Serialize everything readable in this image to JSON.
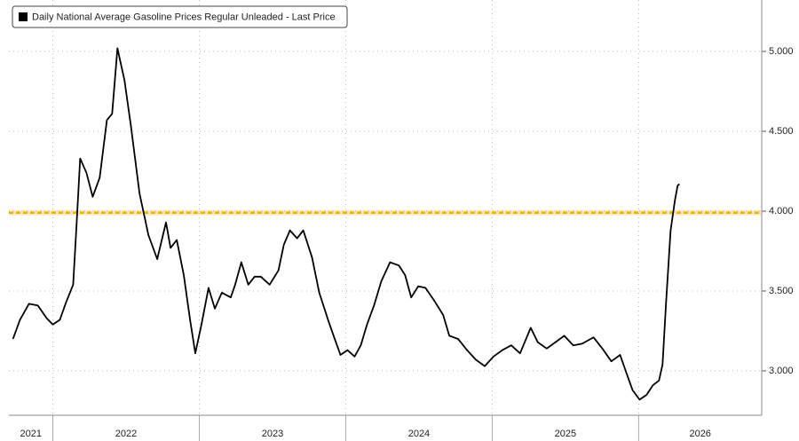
{
  "chart_data": {
    "type": "line",
    "legend": "Daily National Average Gasoline Prices Regular Unleaded - Last Price",
    "legend_position": "top-left",
    "grid": true,
    "reference_line": {
      "value": 3.99,
      "color": "#f0b400"
    },
    "xlim": [
      2021.7,
      2026.84
    ],
    "xticks": [
      {
        "value": 2021,
        "label": "2021"
      },
      {
        "value": 2022,
        "label": "2022"
      },
      {
        "value": 2023,
        "label": "2023"
      },
      {
        "value": 2024,
        "label": "2024"
      },
      {
        "value": 2025,
        "label": "2025"
      },
      {
        "value": 2026,
        "label": "2026"
      }
    ],
    "ylim": [
      2.722,
      5.322
    ],
    "yticks": [
      {
        "value": 3,
        "label": "3.000"
      },
      {
        "value": 3.5,
        "label": "3.500"
      },
      {
        "value": 4,
        "label": "4.000"
      },
      {
        "value": 4.5,
        "label": "4.500"
      },
      {
        "value": 5,
        "label": "5.000"
      }
    ],
    "series": [
      {
        "name": "Daily National Average Gasoline Prices Regular Unleaded - Last Price",
        "color": "#000000",
        "x": [
          2021.728,
          2021.776,
          2021.837,
          2021.897,
          2021.958,
          2022.0,
          2022.048,
          2022.091,
          2022.139,
          2022.163,
          2022.187,
          2022.23,
          2022.272,
          2022.32,
          2022.369,
          2022.405,
          2022.441,
          2022.489,
          2022.532,
          2022.592,
          2022.653,
          2022.713,
          2022.773,
          2022.804,
          2022.846,
          2022.894,
          2022.937,
          2022.973,
          2023.015,
          2023.063,
          2023.106,
          2023.154,
          2023.215,
          2023.245,
          2023.287,
          2023.335,
          2023.378,
          2023.42,
          2023.48,
          2023.541,
          2023.577,
          2023.619,
          2023.668,
          2023.71,
          2023.77,
          2023.819,
          2023.879,
          2023.921,
          2023.964,
          2024.012,
          2024.06,
          2024.103,
          2024.145,
          2024.193,
          2024.242,
          2024.302,
          2024.363,
          2024.405,
          2024.447,
          2024.495,
          2024.544,
          2024.604,
          2024.665,
          2024.707,
          2024.767,
          2024.828,
          2024.888,
          2024.949,
          2025.009,
          2025.069,
          2025.13,
          2025.19,
          2025.263,
          2025.311,
          2025.372,
          2025.432,
          2025.492,
          2025.553,
          2025.613,
          2025.692,
          2025.752,
          2025.813,
          2025.873,
          2025.915,
          2025.958,
          2026.006,
          2026.054,
          2026.097,
          2026.139,
          2026.163,
          2026.187,
          2026.218,
          2026.248,
          2026.266,
          2026.278
        ],
        "values": [
          3.2,
          3.32,
          3.42,
          3.41,
          3.33,
          3.29,
          3.32,
          3.43,
          3.54,
          3.93,
          4.33,
          4.24,
          4.09,
          4.21,
          4.57,
          4.61,
          5.02,
          4.82,
          4.54,
          4.11,
          3.85,
          3.7,
          3.93,
          3.77,
          3.82,
          3.6,
          3.32,
          3.11,
          3.29,
          3.52,
          3.39,
          3.49,
          3.46,
          3.54,
          3.68,
          3.54,
          3.59,
          3.59,
          3.54,
          3.63,
          3.79,
          3.88,
          3.83,
          3.88,
          3.71,
          3.49,
          3.32,
          3.21,
          3.1,
          3.13,
          3.09,
          3.16,
          3.29,
          3.41,
          3.56,
          3.68,
          3.66,
          3.6,
          3.46,
          3.53,
          3.52,
          3.44,
          3.35,
          3.22,
          3.2,
          3.13,
          3.07,
          3.03,
          3.09,
          3.13,
          3.16,
          3.11,
          3.27,
          3.18,
          3.14,
          3.18,
          3.22,
          3.16,
          3.17,
          3.21,
          3.14,
          3.06,
          3.1,
          2.99,
          2.88,
          2.82,
          2.85,
          2.91,
          2.94,
          3.04,
          3.43,
          3.88,
          4.07,
          4.16,
          4.17
        ]
      }
    ]
  }
}
